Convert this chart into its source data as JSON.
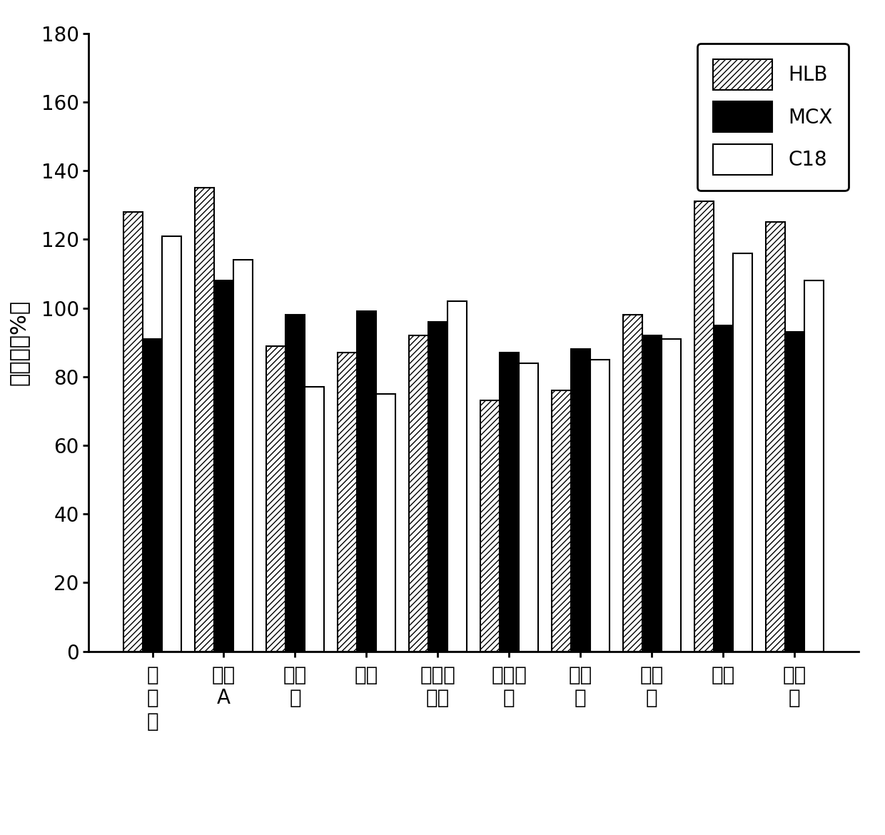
{
  "HLB": [
    128,
    135,
    89,
    87,
    92,
    73,
    76,
    98,
    131,
    125
  ],
  "MCX": [
    91,
    108,
    98,
    99,
    96,
    87,
    88,
    92,
    95,
    93
  ],
  "C18": [
    121,
    114,
    77,
    75,
    102,
    84,
    85,
    91,
    116,
    108
  ],
  "ylabel": "回收率（%）",
  "ylim": [
    0,
    180
  ],
  "yticks": [
    0,
    20,
    40,
    60,
    80,
    100,
    120,
    140,
    160,
    180
  ],
  "background_color": "#ffffff",
  "bar_width": 0.27,
  "hatch_HLB": "////",
  "color_HLB": "#ffffff",
  "color_MCX": "#000000",
  "color_C18": "#ffffff",
  "edgecolor": "#000000",
  "tick_fontsize": 20,
  "ylabel_fontsize": 22,
  "legend_fontsize": 20
}
